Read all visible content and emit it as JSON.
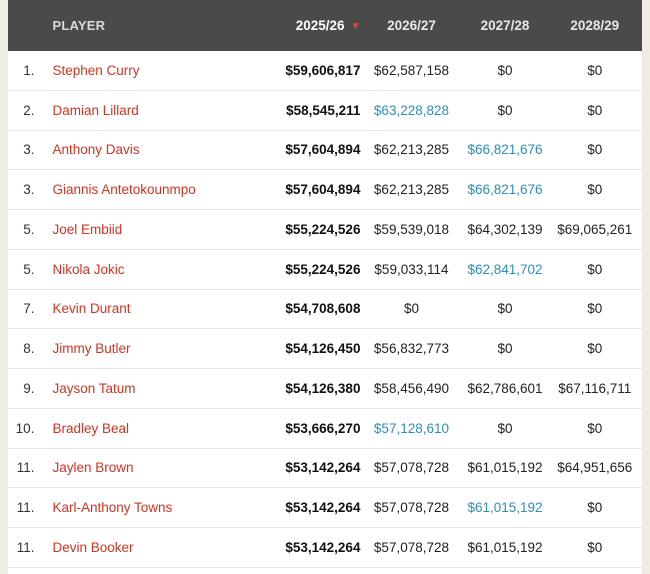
{
  "table": {
    "headers": {
      "player": "PLAYER",
      "y1": "2025/26",
      "y2": "2026/27",
      "y3": "2027/28",
      "y4": "2028/29"
    },
    "sort_icon": "chevron-down-icon",
    "option_color": "#2c8fb8",
    "player_color": "#d6321f",
    "rows": [
      {
        "rank": "1.",
        "player": "Stephen Curry",
        "y1": "$59,606,817",
        "y2": "$62,587,158",
        "y3": "$0",
        "y4": "$0",
        "y2_opt": false,
        "y3_opt": false,
        "y4_opt": false
      },
      {
        "rank": "2.",
        "player": "Damian Lillard",
        "y1": "$58,545,211",
        "y2": "$63,228,828",
        "y3": "$0",
        "y4": "$0",
        "y2_opt": true,
        "y3_opt": false,
        "y4_opt": false
      },
      {
        "rank": "3.",
        "player": "Anthony Davis",
        "y1": "$57,604,894",
        "y2": "$62,213,285",
        "y3": "$66,821,676",
        "y4": "$0",
        "y2_opt": false,
        "y3_opt": true,
        "y4_opt": false
      },
      {
        "rank": "3.",
        "player": "Giannis Antetokounmpo",
        "y1": "$57,604,894",
        "y2": "$62,213,285",
        "y3": "$66,821,676",
        "y4": "$0",
        "y2_opt": false,
        "y3_opt": true,
        "y4_opt": false
      },
      {
        "rank": "5.",
        "player": "Joel Embiid",
        "y1": "$55,224,526",
        "y2": "$59,539,018",
        "y3": "$64,302,139",
        "y4": "$69,065,261",
        "y2_opt": false,
        "y3_opt": false,
        "y4_opt": false
      },
      {
        "rank": "5.",
        "player": "Nikola Jokic",
        "y1": "$55,224,526",
        "y2": "$59,033,114",
        "y3": "$62,841,702",
        "y4": "$0",
        "y2_opt": false,
        "y3_opt": true,
        "y4_opt": false
      },
      {
        "rank": "7.",
        "player": "Kevin Durant",
        "y1": "$54,708,608",
        "y2": "$0",
        "y3": "$0",
        "y4": "$0",
        "y2_opt": false,
        "y3_opt": false,
        "y4_opt": false
      },
      {
        "rank": "8.",
        "player": "Jimmy Butler",
        "y1": "$54,126,450",
        "y2": "$56,832,773",
        "y3": "$0",
        "y4": "$0",
        "y2_opt": false,
        "y3_opt": false,
        "y4_opt": false
      },
      {
        "rank": "9.",
        "player": "Jayson Tatum",
        "y1": "$54,126,380",
        "y2": "$58,456,490",
        "y3": "$62,786,601",
        "y4": "$67,116,711",
        "y2_opt": false,
        "y3_opt": false,
        "y4_opt": false
      },
      {
        "rank": "10.",
        "player": "Bradley Beal",
        "y1": "$53,666,270",
        "y2": "$57,128,610",
        "y3": "$0",
        "y4": "$0",
        "y2_opt": true,
        "y3_opt": false,
        "y4_opt": false
      },
      {
        "rank": "11.",
        "player": "Jaylen Brown",
        "y1": "$53,142,264",
        "y2": "$57,078,728",
        "y3": "$61,015,192",
        "y4": "$64,951,656",
        "y2_opt": false,
        "y3_opt": false,
        "y4_opt": false
      },
      {
        "rank": "11.",
        "player": "Karl-Anthony Towns",
        "y1": "$53,142,264",
        "y2": "$57,078,728",
        "y3": "$61,015,192",
        "y4": "$0",
        "y2_opt": false,
        "y3_opt": true,
        "y4_opt": false
      },
      {
        "rank": "11.",
        "player": "Devin Booker",
        "y1": "$53,142,264",
        "y2": "$57,078,728",
        "y3": "$61,015,192",
        "y4": "$0",
        "y2_opt": false,
        "y3_opt": false,
        "y4_opt": false
      }
    ]
  }
}
